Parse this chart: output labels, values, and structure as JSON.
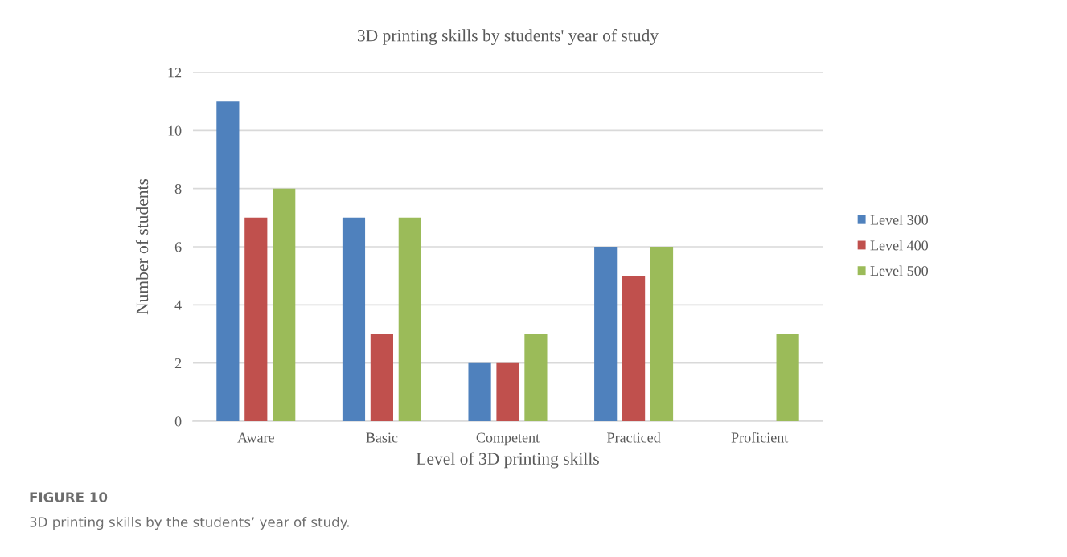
{
  "chart_data": {
    "type": "bar",
    "title": "3D printing skills by students' year of study",
    "xlabel": "Level of 3D printing skills",
    "ylabel": "Number of students",
    "categories": [
      "Aware",
      "Basic",
      "Competent",
      "Practiced",
      "Proficient"
    ],
    "series": [
      {
        "name": "Level 300",
        "color": "#4f81bd",
        "values": [
          11,
          7,
          2,
          6,
          0
        ]
      },
      {
        "name": "Level 400",
        "color": "#c0504d",
        "values": [
          7,
          3,
          2,
          5,
          0
        ]
      },
      {
        "name": "Level 500",
        "color": "#9bbb59",
        "values": [
          8,
          7,
          3,
          6,
          3
        ]
      }
    ],
    "ylim": [
      0,
      12
    ],
    "yticks": [
      0,
      2,
      4,
      6,
      8,
      10,
      12
    ],
    "grid": "y",
    "legend": "right",
    "annotations": [
      "FIGURE 10",
      "3D printing skills by the students’ year of study."
    ]
  }
}
